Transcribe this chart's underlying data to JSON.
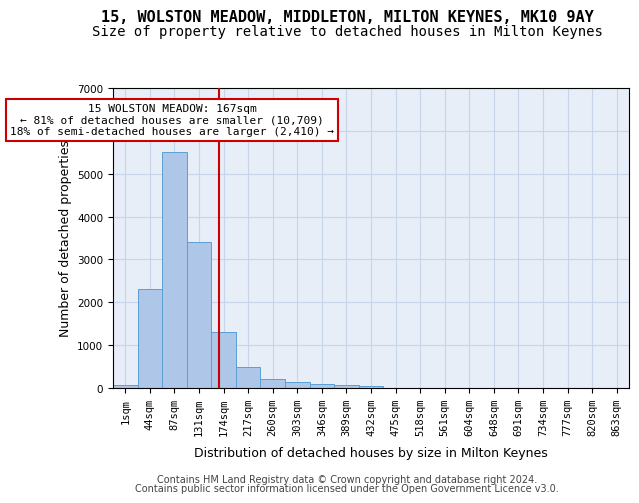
{
  "title": "15, WOLSTON MEADOW, MIDDLETON, MILTON KEYNES, MK10 9AY",
  "subtitle": "Size of property relative to detached houses in Milton Keynes",
  "xlabel": "Distribution of detached houses by size in Milton Keynes",
  "ylabel": "Number of detached properties",
  "footer_line1": "Contains HM Land Registry data © Crown copyright and database right 2024.",
  "footer_line2": "Contains public sector information licensed under the Open Government Licence v3.0.",
  "bin_labels": [
    "1sqm",
    "44sqm",
    "87sqm",
    "131sqm",
    "174sqm",
    "217sqm",
    "260sqm",
    "303sqm",
    "346sqm",
    "389sqm",
    "432sqm",
    "475sqm",
    "518sqm",
    "561sqm",
    "604sqm",
    "648sqm",
    "691sqm",
    "734sqm",
    "777sqm",
    "820sqm",
    "863sqm"
  ],
  "bar_values": [
    80,
    2300,
    5500,
    3400,
    1300,
    500,
    200,
    130,
    90,
    60,
    40,
    0,
    0,
    0,
    0,
    0,
    0,
    0,
    0,
    0,
    0
  ],
  "bar_color": "#aec6e8",
  "bar_edge_color": "#5a9fd4",
  "red_line_x": 3.82,
  "red_line_color": "#cc0000",
  "annotation_text": "15 WOLSTON MEADOW: 167sqm\n← 81% of detached houses are smaller (10,709)\n18% of semi-detached houses are larger (2,410) →",
  "annotation_box_facecolor": "#ffffff",
  "annotation_box_edgecolor": "#cc0000",
  "ylim": [
    0,
    7000
  ],
  "yticks": [
    0,
    1000,
    2000,
    3000,
    4000,
    5000,
    6000,
    7000
  ],
  "grid_color": "#c8d4e8",
  "bg_color": "#e8eef8",
  "title_fontsize": 11,
  "subtitle_fontsize": 10,
  "xlabel_fontsize": 9,
  "ylabel_fontsize": 9,
  "tick_fontsize": 7.5,
  "annot_fontsize": 8,
  "footer_fontsize": 7
}
